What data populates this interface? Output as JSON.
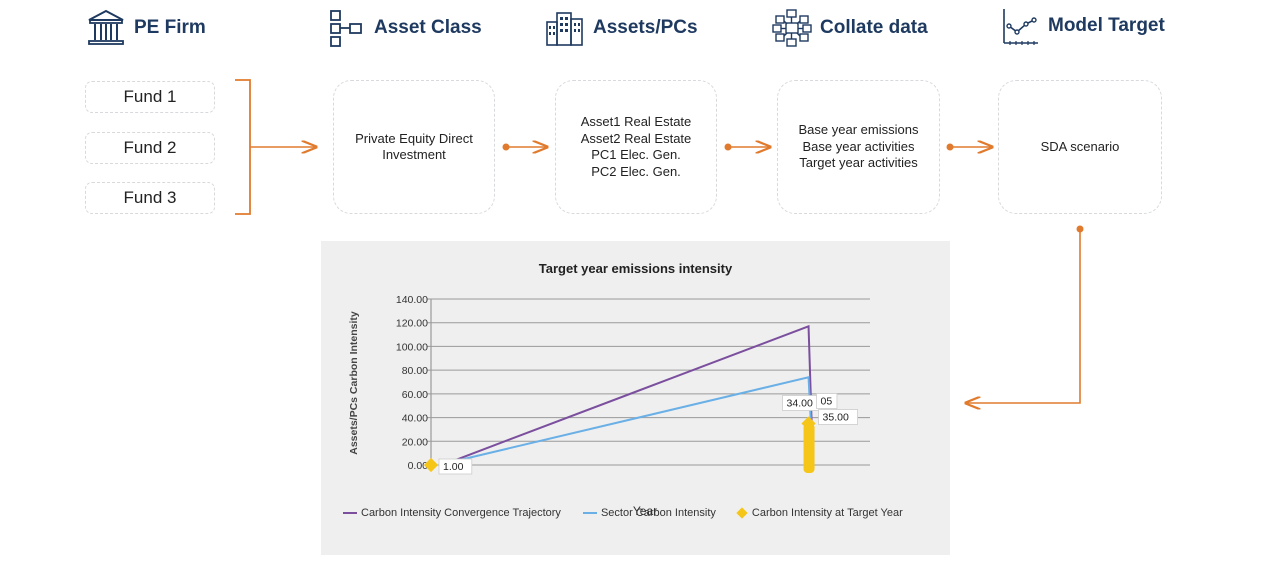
{
  "headers": [
    {
      "label": "PE Firm",
      "icon": "bank-building-icon"
    },
    {
      "label": "Asset Class",
      "icon": "hierarchy-icon"
    },
    {
      "label": "Assets/PCs",
      "icon": "city-buildings-icon"
    },
    {
      "label": "Collate data",
      "icon": "network-grid-icon"
    },
    {
      "label": "Model Target",
      "icon": "line-chart-icon"
    }
  ],
  "funds": [
    "Fund 1",
    "Fund 2",
    "Fund 3"
  ],
  "stages": {
    "asset_class": [
      "Private Equity Direct",
      "Investment"
    ],
    "assets": [
      "Asset1 Real Estate",
      "Asset2 Real Estate",
      "PC1 Elec. Gen.",
      "PC2 Elec. Gen."
    ],
    "collate": [
      "Base year emissions",
      "Base year activities",
      "Target year activities"
    ],
    "model": [
      "SDA scenario"
    ]
  },
  "colors": {
    "arrow": "#e07b2e",
    "heading": "#1f3a60",
    "trajectory": "#7b4f9e",
    "sector": "#6ab0e6",
    "target": "#f5c518",
    "panel": "#efefef"
  },
  "chart_data": {
    "type": "line",
    "title": "Target year emissions intensity",
    "xlabel": "Year",
    "ylabel": "Assets/PCs Carbon Intensity",
    "ylim": [
      0,
      140
    ],
    "yticks": [
      "0.00",
      "20.00",
      "40.00",
      "60.00",
      "80.00",
      "100.00",
      "120.00",
      "140.00"
    ],
    "grid": true,
    "legend_position": "bottom",
    "series": [
      {
        "name": "Carbon Intensity Convergence Trajectory",
        "type": "line",
        "points": [
          [
            0.04,
            2
          ],
          [
            0.86,
            117
          ],
          [
            0.87,
            2
          ]
        ]
      },
      {
        "name": "Sector Carbon Intensity",
        "type": "line",
        "points": [
          [
            0.04,
            2
          ],
          [
            0.86,
            74
          ],
          [
            0.87,
            2
          ]
        ]
      },
      {
        "name": "Carbon Intensity at Target Year",
        "type": "scatter",
        "points": [
          [
            0.0,
            0
          ],
          [
            0.86,
            35
          ]
        ]
      }
    ],
    "data_labels": [
      "1.00",
      "34.00",
      "35.00",
      "05"
    ]
  }
}
